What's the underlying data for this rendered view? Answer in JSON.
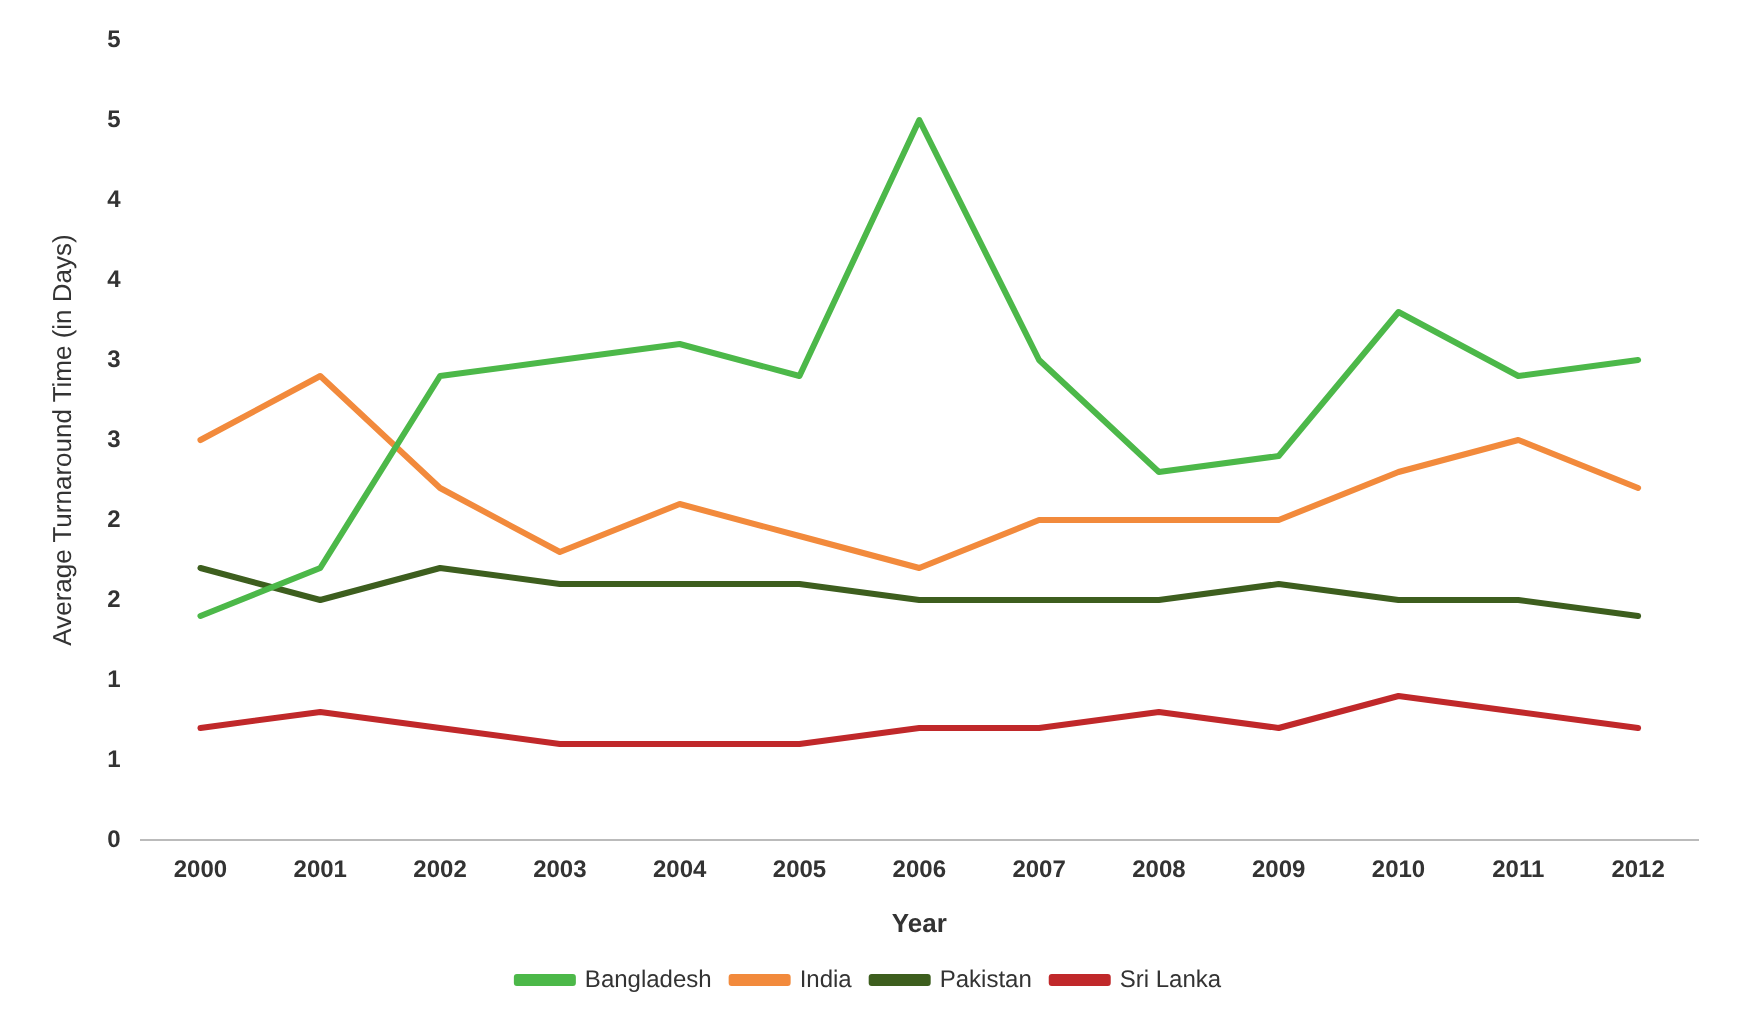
{
  "chart_data": {
    "type": "line",
    "xlabel": "Year",
    "ylabel": "Average Turnaround Time (in Days)",
    "categories": [
      "2000",
      "2001",
      "2002",
      "2003",
      "2004",
      "2005",
      "2006",
      "2007",
      "2008",
      "2009",
      "2010",
      "2011",
      "2012"
    ],
    "ylim": [
      0,
      5
    ],
    "yticks": [
      0,
      {
        "value": 0.5,
        "label": "1"
      },
      1,
      {
        "value": 1.5,
        "label": "2"
      },
      2,
      {
        "value": 2.5,
        "label": "3"
      },
      3,
      {
        "value": 3.5,
        "label": "4"
      },
      4,
      {
        "value": 4.5,
        "label": "5"
      },
      5
    ],
    "grid": false,
    "legend": "bottom",
    "marker": "none",
    "line_style": "solid",
    "series": [
      {
        "name": "Bangladesh",
        "color": "#4cb849",
        "values": [
          1.4,
          1.7,
          2.9,
          3.0,
          3.1,
          2.9,
          4.5,
          3.0,
          2.3,
          2.4,
          3.3,
          2.9,
          3.0
        ]
      },
      {
        "name": "India",
        "color": "#f28a3c",
        "values": [
          2.5,
          2.9,
          2.2,
          1.8,
          2.1,
          1.9,
          1.7,
          2.0,
          2.0,
          2.0,
          2.3,
          2.5,
          2.2
        ]
      },
      {
        "name": "Pakistan",
        "color": "#3d5e1e",
        "values": [
          1.7,
          1.5,
          1.7,
          1.6,
          1.6,
          1.6,
          1.5,
          1.5,
          1.5,
          1.6,
          1.5,
          1.5,
          1.4
        ]
      },
      {
        "name": "Sri Lanka",
        "color": "#c0282a",
        "values": [
          0.7,
          0.8,
          0.7,
          0.6,
          0.6,
          0.6,
          0.7,
          0.7,
          0.8,
          0.7,
          0.9,
          0.8,
          0.7
        ]
      }
    ]
  }
}
